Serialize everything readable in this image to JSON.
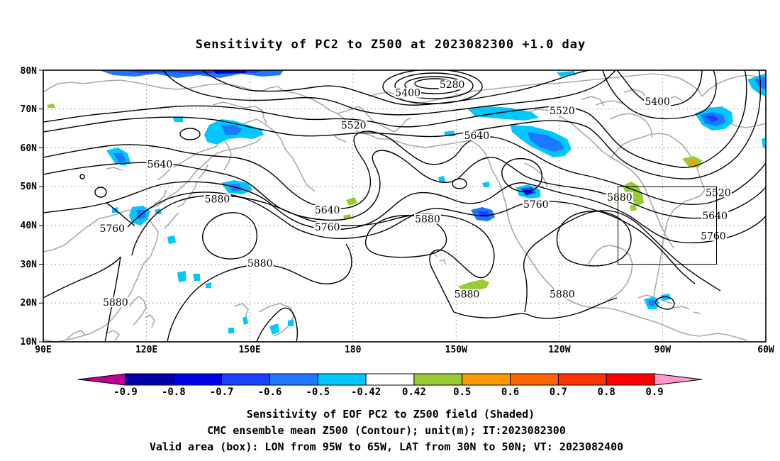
{
  "title": "Sensitivity of PC2 to Z500 at 2023082300 +1.0 day",
  "map": {
    "lon_range": [
      "90E",
      "50W"
    ],
    "lat_range": [
      "10N",
      "80N"
    ],
    "lat_labels": [
      "10N",
      "20N",
      "30N",
      "40N",
      "50N",
      "60N",
      "70N",
      "80N"
    ],
    "lon_labels": [
      "90E",
      "120E",
      "150E",
      "180",
      "150W",
      "120W",
      "90W",
      "60W"
    ],
    "grid": "dotted",
    "coastline_color": "#aaaaaa",
    "contour_color": "#000000",
    "contour_labels": [
      {
        "text": "5280",
        "lon": -145.5,
        "lat": 76.3
      },
      {
        "text": "5400",
        "lon": -159,
        "lat": 74.2
      },
      {
        "text": "5400",
        "lon": -83,
        "lat": 72
      },
      {
        "text": "5520",
        "lon": -175.5,
        "lat": 65.8
      },
      {
        "text": "5520",
        "lon": -112,
        "lat": 69.6
      },
      {
        "text": "5520",
        "lon": -64.5,
        "lat": 48.5
      },
      {
        "text": "5640",
        "lon": -138,
        "lat": 63.2
      },
      {
        "text": "5640",
        "lon": 125.5,
        "lat": 55.8
      },
      {
        "text": "5640",
        "lon": 176.5,
        "lat": 44
      },
      {
        "text": "5640",
        "lon": -65.5,
        "lat": 42.5
      },
      {
        "text": "5760",
        "lon": 111,
        "lat": 39.2
      },
      {
        "text": "5760",
        "lon": 176.5,
        "lat": 39.6
      },
      {
        "text": "5760",
        "lon": -120,
        "lat": 45.5
      },
      {
        "text": "5760",
        "lon": -66,
        "lat": 37.3
      },
      {
        "text": "5880",
        "lon": 143,
        "lat": 46.8
      },
      {
        "text": "5880",
        "lon": -153,
        "lat": 41.7
      },
      {
        "text": "5880",
        "lon": -94.5,
        "lat": 47.3
      },
      {
        "text": "5880",
        "lon": 156,
        "lat": 30.3
      },
      {
        "text": "5880",
        "lon": -141,
        "lat": 22.3
      },
      {
        "text": "5880",
        "lon": -112,
        "lat": 22.3
      },
      {
        "text": "5880",
        "lon": 112,
        "lat": 20.2
      }
    ],
    "valid_box": {
      "lon_min": -95,
      "lon_max": -65,
      "lat_min": 30,
      "lat_max": 50
    }
  },
  "colorbar": {
    "colors": [
      "#c00095",
      "#0000a8",
      "#0000e6",
      "#1c40ff",
      "#1e78ff",
      "#00c8ff",
      "#ffffff",
      "#99cc33",
      "#ff9900",
      "#ff6600",
      "#ff3300",
      "#ff0000",
      "#ff99cc"
    ],
    "labels": [
      "-0.9",
      "-0.8",
      "-0.7",
      "-0.6",
      "-0.5",
      "-0.42",
      "0.42",
      "0.5",
      "0.6",
      "0.7",
      "0.8",
      "0.9"
    ]
  },
  "footer": {
    "line1": "Sensitivity of EOF PC2 to Z500 field (Shaded)",
    "line2": "CMC ensemble mean Z500 (Contour); unit(m); IT:2023082300",
    "line3": "Valid area (box): LON from 95W to 65W, LAT from 30N to 50N; VT: 2023082400"
  }
}
